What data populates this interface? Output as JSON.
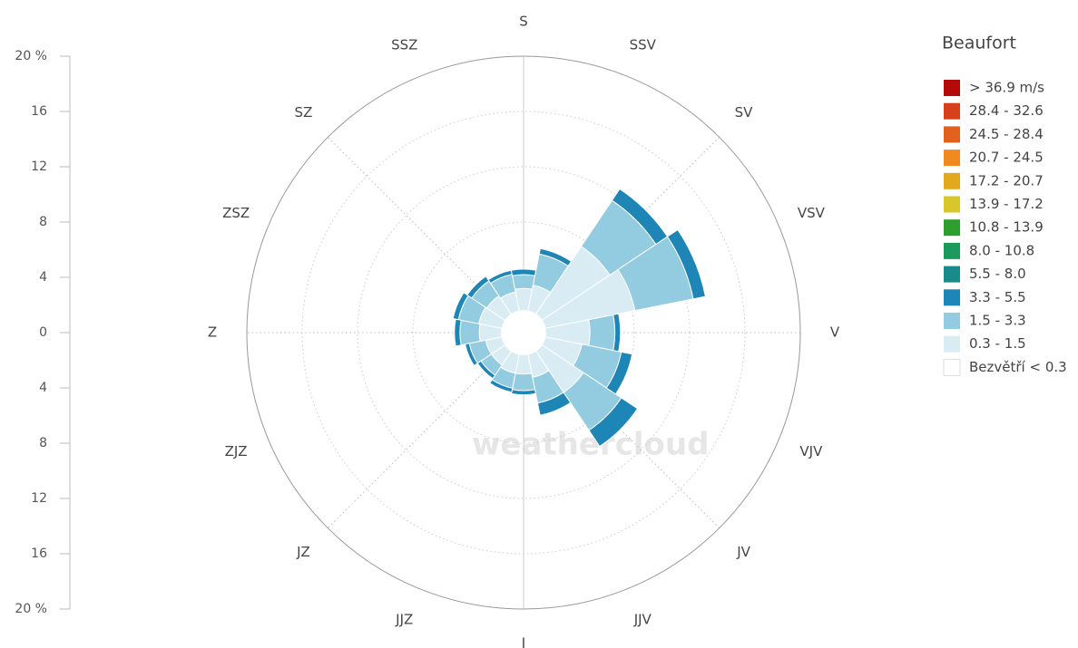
{
  "chart_data": {
    "type": "windrose",
    "legend_title": "Beaufort",
    "watermark": "weathercloud",
    "categories": [
      "S",
      "SSV",
      "SV",
      "VSV",
      "V",
      "VJV",
      "JV",
      "JJV",
      "J",
      "JJZ",
      "JZ",
      "ZJZ",
      "Z",
      "ZSZ",
      "SZ",
      "SSZ"
    ],
    "ylim": [
      0,
      20
    ],
    "yticks": [
      0,
      4,
      8,
      12,
      16,
      {
        "value": 20,
        "label": "20 %"
      }
    ],
    "grid": true,
    "legend": "right",
    "series": [
      {
        "name": "> 36.9 m/s",
        "color": "#b50a0a",
        "values": [
          0,
          0,
          0,
          0,
          0,
          0,
          0,
          0,
          0,
          0,
          0,
          0,
          0,
          0,
          0,
          0
        ]
      },
      {
        "name": "28.4 - 32.6",
        "color": "#d8401c",
        "values": [
          0,
          0,
          0,
          0,
          0,
          0,
          0,
          0,
          0,
          0,
          0,
          0,
          0,
          0,
          0,
          0
        ]
      },
      {
        "name": "24.5 - 28.4",
        "color": "#e0621e",
        "values": [
          0,
          0,
          0,
          0,
          0,
          0,
          0,
          0,
          0,
          0,
          0,
          0,
          0,
          0,
          0,
          0
        ]
      },
      {
        "name": "20.7 - 24.5",
        "color": "#f08a1e",
        "values": [
          0,
          0,
          0,
          0,
          0,
          0,
          0,
          0,
          0,
          0,
          0,
          0,
          0,
          0,
          0,
          0
        ]
      },
      {
        "name": "17.2 - 20.7",
        "color": "#e2a91f",
        "values": [
          0,
          0,
          0,
          0,
          0,
          0,
          0,
          0,
          0,
          0,
          0,
          0,
          0,
          0,
          0,
          0
        ]
      },
      {
        "name": "13.9 - 17.2",
        "color": "#d8c62a",
        "values": [
          0,
          0,
          0,
          0,
          0,
          0,
          0,
          0,
          0,
          0,
          0,
          0,
          0,
          0,
          0,
          0
        ]
      },
      {
        "name": "10.8 - 13.9",
        "color": "#2e9e2e",
        "values": [
          0,
          0,
          0,
          0,
          0,
          0,
          0,
          0,
          0,
          0,
          0,
          0,
          0,
          0,
          0,
          0
        ]
      },
      {
        "name": "8.0 - 10.8",
        "color": "#1c9a5e",
        "values": [
          0,
          0,
          0,
          0,
          0,
          0,
          0,
          0,
          0,
          0,
          0,
          0,
          0,
          0,
          0,
          0
        ]
      },
      {
        "name": "5.5 - 8.0",
        "color": "#1a8a8a",
        "values": [
          0,
          0,
          0,
          0,
          0,
          0,
          0,
          0,
          0,
          0,
          0,
          0,
          0,
          0,
          0,
          0
        ]
      },
      {
        "name": "3.3 - 5.5",
        "color": "#1d86b6",
        "values": [
          0.4,
          0.4,
          1.0,
          0.9,
          0.4,
          0.8,
          1.4,
          0.9,
          0.3,
          0.3,
          0.3,
          0.3,
          0.4,
          0.4,
          0.4,
          0.3
        ]
      },
      {
        "name": "1.5 - 3.3",
        "color": "#93cbe0",
        "values": [
          1.0,
          2.3,
          4.0,
          4.3,
          1.8,
          2.9,
          3.3,
          1.9,
          1.2,
          1.1,
          0.9,
          1.2,
          1.4,
          1.5,
          1.3,
          1.3
        ]
      },
      {
        "name": "0.3 - 1.5",
        "color": "#d9ecf3",
        "values": [
          1.6,
          1.9,
          5.9,
          6.6,
          3.2,
          2.7,
          3.6,
          1.7,
          1.4,
          1.4,
          1.2,
          1.2,
          1.6,
          1.7,
          1.6,
          1.4
        ]
      },
      {
        "name": "Bezvětří < 0.3",
        "color": "#ffffff",
        "values": [
          1.6,
          1.6,
          1.6,
          1.6,
          1.6,
          1.6,
          1.6,
          1.6,
          1.6,
          1.6,
          1.6,
          1.6,
          1.6,
          1.6,
          1.6,
          1.6
        ]
      }
    ]
  }
}
